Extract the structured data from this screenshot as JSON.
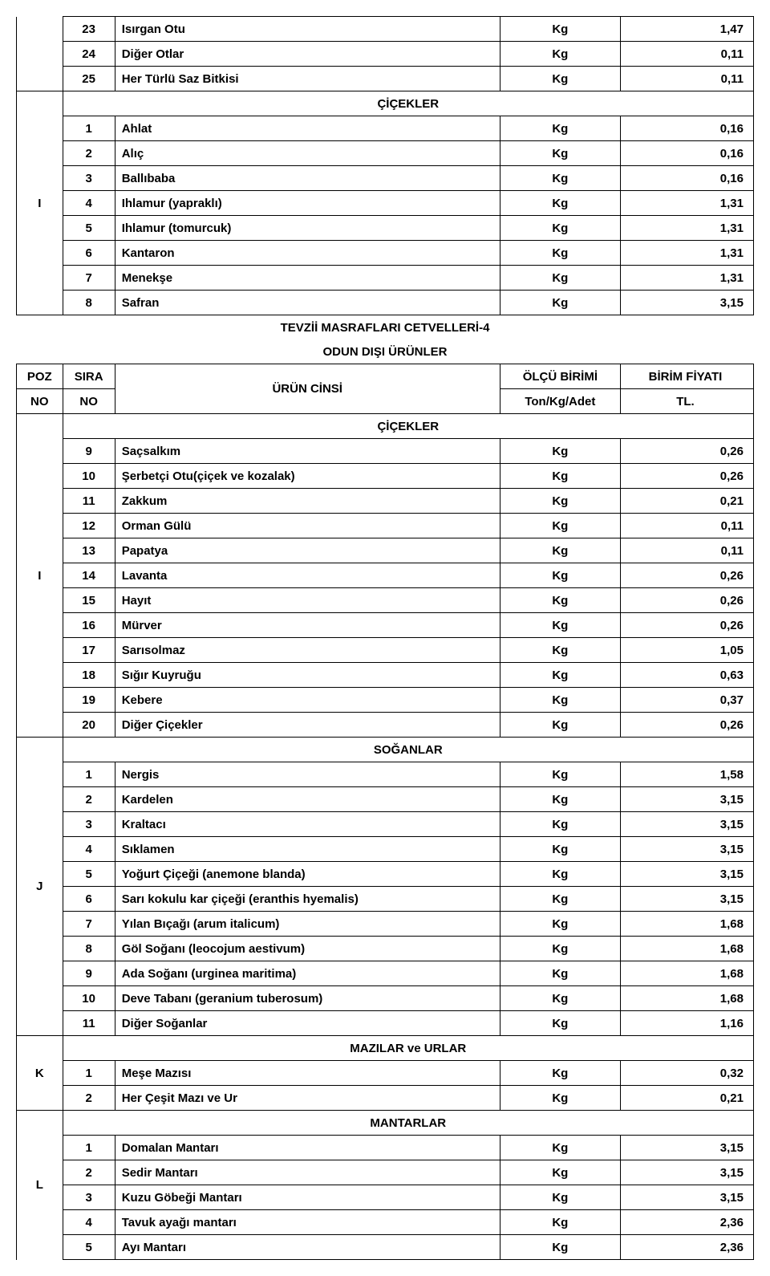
{
  "top_rows": [
    {
      "sira": "23",
      "name": "Isırgan Otu",
      "unit": "Kg",
      "price": "1,47"
    },
    {
      "sira": "24",
      "name": "Diğer Otlar",
      "unit": "Kg",
      "price": "0,11"
    },
    {
      "sira": "25",
      "name": "Her Türlü Saz Bitkisi",
      "unit": "Kg",
      "price": "0,11"
    }
  ],
  "section_cicekler_top": {
    "title": "ÇİÇEKLER",
    "poz": "I"
  },
  "cicekler_top_rows": [
    {
      "sira": "1",
      "name": "Ahlat",
      "unit": "Kg",
      "price": "0,16"
    },
    {
      "sira": "2",
      "name": "Alıç",
      "unit": "Kg",
      "price": "0,16"
    },
    {
      "sira": "3",
      "name": "Ballıbaba",
      "unit": "Kg",
      "price": "0,16"
    },
    {
      "sira": "4",
      "name": "Ihlamur (yapraklı)",
      "unit": "Kg",
      "price": "1,31"
    },
    {
      "sira": "5",
      "name": "Ihlamur (tomurcuk)",
      "unit": "Kg",
      "price": "1,31"
    },
    {
      "sira": "6",
      "name": "Kantaron",
      "unit": "Kg",
      "price": "1,31"
    },
    {
      "sira": "7",
      "name": "Menekşe",
      "unit": "Kg",
      "price": "1,31"
    },
    {
      "sira": "8",
      "name": "Safran",
      "unit": "Kg",
      "price": "3,15"
    }
  ],
  "doc_title_line1": "TEVZİİ MASRAFLARI CETVELLERİ-4",
  "doc_title_line2": "ODUN DIŞI ÜRÜNLER",
  "header": {
    "poz": "POZ",
    "sira": "SIRA",
    "urun": "ÜRÜN CİNSİ",
    "olcu": "ÖLÇÜ BİRİMİ",
    "birim": "BİRİM FİYATI",
    "no1": "NO",
    "no2": "NO",
    "ton": "Ton/Kg/Adet",
    "tl": "TL."
  },
  "section_cicekler2": {
    "title": "ÇİÇEKLER",
    "poz": "I"
  },
  "cicekler2_rows": [
    {
      "sira": "9",
      "name": "Saçsalkım",
      "unit": "Kg",
      "price": "0,26"
    },
    {
      "sira": "10",
      "name": "Şerbetçi Otu(çiçek ve kozalak)",
      "unit": "Kg",
      "price": "0,26"
    },
    {
      "sira": "11",
      "name": "Zakkum",
      "unit": "Kg",
      "price": "0,21"
    },
    {
      "sira": "12",
      "name": "Orman Gülü",
      "unit": "Kg",
      "price": "0,11"
    },
    {
      "sira": "13",
      "name": "Papatya",
      "unit": "Kg",
      "price": "0,11"
    },
    {
      "sira": "14",
      "name": "Lavanta",
      "unit": "Kg",
      "price": "0,26"
    },
    {
      "sira": "15",
      "name": "Hayıt",
      "unit": "Kg",
      "price": "0,26"
    },
    {
      "sira": "16",
      "name": "Mürver",
      "unit": "Kg",
      "price": "0,26"
    },
    {
      "sira": "17",
      "name": "Sarısolmaz",
      "unit": "Kg",
      "price": "1,05"
    },
    {
      "sira": "18",
      "name": "Sığır Kuyruğu",
      "unit": "Kg",
      "price": "0,63"
    },
    {
      "sira": "19",
      "name": "Kebere",
      "unit": "Kg",
      "price": "0,37"
    },
    {
      "sira": "20",
      "name": "Diğer Çiçekler",
      "unit": "Kg",
      "price": "0,26"
    }
  ],
  "section_soganlar": {
    "title": "SOĞANLAR",
    "poz": "J"
  },
  "soganlar_rows": [
    {
      "sira": "1",
      "name": "Nergis",
      "unit": "Kg",
      "price": "1,58"
    },
    {
      "sira": "2",
      "name": "Kardelen",
      "unit": "Kg",
      "price": "3,15"
    },
    {
      "sira": "3",
      "name": "Kraltacı",
      "unit": "Kg",
      "price": "3,15"
    },
    {
      "sira": "4",
      "name": "Sıklamen",
      "unit": "Kg",
      "price": "3,15"
    },
    {
      "sira": "5",
      "name": "Yoğurt Çiçeği (anemone blanda)",
      "unit": "Kg",
      "price": "3,15"
    },
    {
      "sira": "6",
      "name": "Sarı kokulu kar çiçeği (eranthis hyemalis)",
      "unit": "Kg",
      "price": "3,15"
    },
    {
      "sira": "7",
      "name": "Yılan Bıçağı (arum italicum)",
      "unit": "Kg",
      "price": "1,68"
    },
    {
      "sira": "8",
      "name": "Göl Soğanı (leocojum aestivum)",
      "unit": "Kg",
      "price": "1,68"
    },
    {
      "sira": "9",
      "name": "Ada Soğanı (urginea maritima)",
      "unit": "Kg",
      "price": "1,68"
    },
    {
      "sira": "10",
      "name": "Deve Tabanı (geranium tuberosum)",
      "unit": "Kg",
      "price": "1,68"
    },
    {
      "sira": "11",
      "name": "Diğer Soğanlar",
      "unit": "Kg",
      "price": "1,16"
    }
  ],
  "section_mazilar": {
    "title": "MAZILAR ve URLAR",
    "poz": "K"
  },
  "mazilar_rows": [
    {
      "sira": "1",
      "name": "Meşe Mazısı",
      "unit": "Kg",
      "price": "0,32"
    },
    {
      "sira": "2",
      "name": "Her Çeşit Mazı ve Ur",
      "unit": "Kg",
      "price": "0,21"
    }
  ],
  "section_mantarlar": {
    "title": "MANTARLAR",
    "poz": "L"
  },
  "mantarlar_rows": [
    {
      "sira": "1",
      "name": "Domalan Mantarı",
      "unit": "Kg",
      "price": "3,15"
    },
    {
      "sira": "2",
      "name": "Sedir Mantarı",
      "unit": "Kg",
      "price": "3,15"
    },
    {
      "sira": "3",
      "name": "Kuzu Göbeği Mantarı",
      "unit": "Kg",
      "price": "3,15"
    },
    {
      "sira": "4",
      "name": "Tavuk ayağı mantarı",
      "unit": "Kg",
      "price": "2,36"
    },
    {
      "sira": "5",
      "name": "Ayı Mantarı",
      "unit": "Kg",
      "price": "2,36"
    }
  ]
}
